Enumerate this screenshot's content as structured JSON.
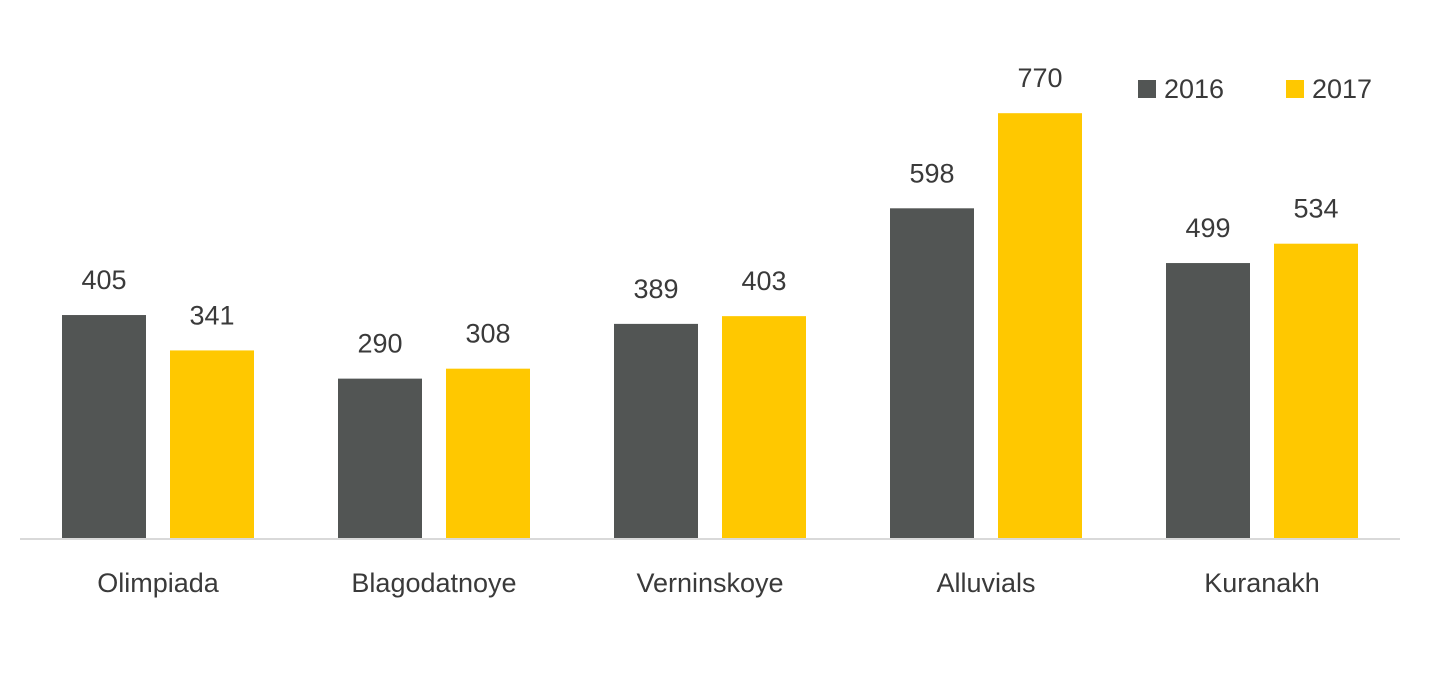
{
  "chart_data": {
    "type": "bar",
    "categories": [
      "Olimpiada",
      "Blagodatnoye",
      "Verninskoye",
      "Alluvials",
      "Kuranakh"
    ],
    "series": [
      {
        "name": "2016",
        "values": [
          405,
          290,
          389,
          598,
          499
        ],
        "color": "#525554"
      },
      {
        "name": "2017",
        "values": [
          341,
          308,
          403,
          770,
          534
        ],
        "color": "#FFC800"
      }
    ],
    "ylim": [
      0,
      770
    ],
    "grid": false,
    "legend_position": "top-right",
    "axis_color": "#d9d9d9"
  }
}
